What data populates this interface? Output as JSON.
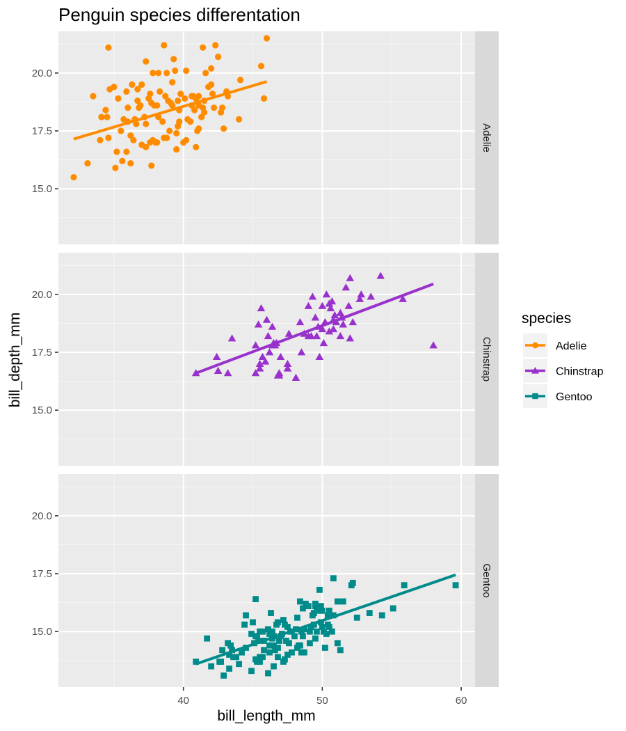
{
  "chart_data": {
    "type": "scatter",
    "title": "Penguin species differentation",
    "xlabel": "bill_length_mm",
    "ylabel": "bill_depth_mm",
    "xlim": [
      31.0,
      61.0
    ],
    "ylim": [
      12.6,
      21.8
    ],
    "x_ticks": [
      40,
      50,
      60
    ],
    "y_ticks": [
      15.0,
      17.5,
      20.0
    ],
    "y_tick_labels": [
      "15.0",
      "17.5",
      "20.0"
    ],
    "grid": true,
    "facet_by": "species",
    "legend_title": "species",
    "legend_position": "right",
    "series": [
      {
        "name": "Adelie",
        "color": "#FF8C00",
        "shape": "circle",
        "trend": {
          "x": [
            32.1,
            46.0
          ],
          "y": [
            17.15,
            19.63
          ]
        },
        "points": [
          [
            32.1,
            15.5
          ],
          [
            33.1,
            16.1
          ],
          [
            33.5,
            19.0
          ],
          [
            34.0,
            17.1
          ],
          [
            34.1,
            18.1
          ],
          [
            34.4,
            18.4
          ],
          [
            34.5,
            18.1
          ],
          [
            34.6,
            21.1
          ],
          [
            34.6,
            17.2
          ],
          [
            35.0,
            19.4
          ],
          [
            35.1,
            15.9
          ],
          [
            35.3,
            18.9
          ],
          [
            35.5,
            17.5
          ],
          [
            35.6,
            16.2
          ],
          [
            35.7,
            18.0
          ],
          [
            35.9,
            19.2
          ],
          [
            36.0,
            18.5
          ],
          [
            36.0,
            17.9
          ],
          [
            36.2,
            17.3
          ],
          [
            36.2,
            16.1
          ],
          [
            36.4,
            17.1
          ],
          [
            36.5,
            18.0
          ],
          [
            36.6,
            17.8
          ],
          [
            36.7,
            19.3
          ],
          [
            36.8,
            18.5
          ],
          [
            36.9,
            18.6
          ],
          [
            37.0,
            16.9
          ],
          [
            37.2,
            18.1
          ],
          [
            37.3,
            16.8
          ],
          [
            37.3,
            20.5
          ],
          [
            37.5,
            18.9
          ],
          [
            37.6,
            19.1
          ],
          [
            37.7,
            18.7
          ],
          [
            37.8,
            17.1
          ],
          [
            37.8,
            20.0
          ],
          [
            37.9,
            18.6
          ],
          [
            38.0,
            17.0
          ],
          [
            38.1,
            18.6
          ],
          [
            38.2,
            18.1
          ],
          [
            38.3,
            19.2
          ],
          [
            38.5,
            17.9
          ],
          [
            38.6,
            21.2
          ],
          [
            38.7,
            19.0
          ],
          [
            38.8,
            17.2
          ],
          [
            38.9,
            18.8
          ],
          [
            39.0,
            17.5
          ],
          [
            39.1,
            18.7
          ],
          [
            39.2,
            19.6
          ],
          [
            39.3,
            20.6
          ],
          [
            39.5,
            17.4
          ],
          [
            39.6,
            17.7
          ],
          [
            39.6,
            18.8
          ],
          [
            39.7,
            18.4
          ],
          [
            39.8,
            19.1
          ],
          [
            40.0,
            17.0
          ],
          [
            40.1,
            18.9
          ],
          [
            40.2,
            17.1
          ],
          [
            40.3,
            18.0
          ],
          [
            40.5,
            17.9
          ],
          [
            40.6,
            18.6
          ],
          [
            40.7,
            19.0
          ],
          [
            40.8,
            18.4
          ],
          [
            40.9,
            16.8
          ],
          [
            41.0,
            17.5
          ],
          [
            41.1,
            19.0
          ],
          [
            41.3,
            18.1
          ],
          [
            41.4,
            18.5
          ],
          [
            41.5,
            18.3
          ],
          [
            41.6,
            20.0
          ],
          [
            41.8,
            19.4
          ],
          [
            42.0,
            20.2
          ],
          [
            42.2,
            18.5
          ],
          [
            42.3,
            21.2
          ],
          [
            42.5,
            20.7
          ],
          [
            42.7,
            18.3
          ],
          [
            42.8,
            18.5
          ],
          [
            42.9,
            17.6
          ],
          [
            43.1,
            19.2
          ],
          [
            43.2,
            19.0
          ],
          [
            44.1,
            19.7
          ],
          [
            45.6,
            20.3
          ],
          [
            45.8,
            18.9
          ],
          [
            46.0,
            21.5
          ],
          [
            36.3,
            19.5
          ],
          [
            37.7,
            16.0
          ],
          [
            38.2,
            20.0
          ],
          [
            39.2,
            18.6
          ],
          [
            39.7,
            17.9
          ],
          [
            40.6,
            19.0
          ],
          [
            41.1,
            17.6
          ],
          [
            41.5,
            18.8
          ],
          [
            42.0,
            19.5
          ],
          [
            44.0,
            18.0
          ],
          [
            41.4,
            21.1
          ],
          [
            39.4,
            20.1
          ],
          [
            35.9,
            16.6
          ],
          [
            37.3,
            17.8
          ],
          [
            38.6,
            17.2
          ],
          [
            40.2,
            20.1
          ],
          [
            36.7,
            18.8
          ],
          [
            34.7,
            19.3
          ],
          [
            40.9,
            18.9
          ],
          [
            38.8,
            20.0
          ],
          [
            37.0,
            19.5
          ],
          [
            35.2,
            16.6
          ],
          [
            41.1,
            18.6
          ],
          [
            38.1,
            17.0
          ],
          [
            39.5,
            16.7
          ],
          [
            42.1,
            19.1
          ],
          [
            37.6,
            17.0
          ]
        ]
      },
      {
        "name": "Chinstrap",
        "color": "#9932CC",
        "shape": "triangle",
        "trend": {
          "x": [
            40.9,
            58.0
          ],
          "y": [
            16.6,
            20.45
          ]
        },
        "points": [
          [
            40.9,
            16.6
          ],
          [
            42.4,
            17.3
          ],
          [
            42.5,
            16.7
          ],
          [
            43.2,
            16.6
          ],
          [
            43.5,
            18.1
          ],
          [
            45.2,
            16.6
          ],
          [
            45.2,
            17.8
          ],
          [
            45.4,
            18.7
          ],
          [
            45.5,
            17.0
          ],
          [
            45.6,
            19.4
          ],
          [
            45.7,
            17.3
          ],
          [
            45.9,
            17.1
          ],
          [
            46.0,
            18.9
          ],
          [
            46.1,
            18.2
          ],
          [
            46.2,
            17.5
          ],
          [
            46.4,
            18.6
          ],
          [
            46.5,
            17.9
          ],
          [
            46.6,
            17.8
          ],
          [
            46.7,
            17.9
          ],
          [
            46.8,
            16.5
          ],
          [
            46.9,
            16.6
          ],
          [
            47.0,
            17.3
          ],
          [
            47.5,
            16.8
          ],
          [
            47.6,
            18.3
          ],
          [
            48.1,
            16.4
          ],
          [
            48.5,
            17.5
          ],
          [
            49.0,
            19.5
          ],
          [
            49.2,
            18.2
          ],
          [
            49.5,
            19.0
          ],
          [
            49.6,
            18.2
          ],
          [
            49.7,
            18.6
          ],
          [
            49.8,
            17.3
          ],
          [
            50.0,
            19.5
          ],
          [
            50.1,
            17.9
          ],
          [
            50.2,
            18.8
          ],
          [
            50.3,
            20.0
          ],
          [
            50.5,
            18.4
          ],
          [
            50.6,
            19.4
          ],
          [
            50.7,
            19.7
          ],
          [
            50.8,
            18.5
          ],
          [
            50.9,
            19.1
          ],
          [
            51.0,
            18.8
          ],
          [
            51.3,
            19.2
          ],
          [
            51.4,
            19.0
          ],
          [
            51.5,
            18.7
          ],
          [
            51.7,
            20.3
          ],
          [
            52.0,
            18.1
          ],
          [
            52.0,
            20.7
          ],
          [
            52.2,
            18.8
          ],
          [
            52.7,
            19.8
          ],
          [
            52.8,
            20.0
          ],
          [
            53.5,
            19.9
          ],
          [
            54.2,
            20.8
          ],
          [
            55.8,
            19.8
          ],
          [
            58.0,
            17.8
          ],
          [
            50.5,
            19.6
          ],
          [
            49.3,
            19.9
          ],
          [
            51.9,
            19.5
          ],
          [
            48.7,
            18.3
          ],
          [
            47.5,
            17.0
          ],
          [
            46.4,
            17.8
          ],
          [
            50.8,
            18.9
          ],
          [
            49.0,
            18.2
          ],
          [
            46.9,
            16.5
          ],
          [
            45.5,
            16.8
          ],
          [
            48.4,
            18.8
          ],
          [
            50.0,
            18.5
          ],
          [
            51.3,
            18.2
          ]
        ]
      },
      {
        "name": "Gentoo",
        "color": "#008B8B",
        "shape": "square",
        "trend": {
          "x": [
            40.9,
            59.6
          ],
          "y": [
            13.6,
            17.45
          ]
        },
        "points": [
          [
            40.9,
            13.7
          ],
          [
            41.7,
            14.7
          ],
          [
            42.0,
            13.5
          ],
          [
            42.6,
            13.7
          ],
          [
            42.7,
            13.7
          ],
          [
            42.8,
            14.2
          ],
          [
            42.9,
            13.1
          ],
          [
            43.2,
            14.5
          ],
          [
            43.3,
            13.4
          ],
          [
            43.3,
            14.0
          ],
          [
            43.5,
            14.2
          ],
          [
            43.6,
            13.9
          ],
          [
            43.8,
            13.9
          ],
          [
            44.0,
            13.6
          ],
          [
            44.4,
            15.3
          ],
          [
            44.5,
            14.3
          ],
          [
            44.5,
            15.7
          ],
          [
            44.9,
            13.3
          ],
          [
            45.0,
            15.4
          ],
          [
            45.1,
            14.5
          ],
          [
            45.2,
            13.8
          ],
          [
            45.2,
            14.8
          ],
          [
            45.2,
            16.4
          ],
          [
            45.3,
            13.7
          ],
          [
            45.4,
            14.6
          ],
          [
            45.5,
            13.7
          ],
          [
            45.5,
            13.9
          ],
          [
            45.5,
            15.0
          ],
          [
            45.7,
            13.9
          ],
          [
            45.8,
            14.2
          ],
          [
            46.1,
            13.2
          ],
          [
            46.1,
            15.1
          ],
          [
            46.2,
            14.1
          ],
          [
            46.2,
            14.9
          ],
          [
            46.3,
            15.8
          ],
          [
            46.4,
            15.0
          ],
          [
            46.5,
            13.5
          ],
          [
            46.5,
            14.4
          ],
          [
            46.5,
            14.8
          ],
          [
            46.6,
            14.2
          ],
          [
            46.7,
            15.3
          ],
          [
            46.8,
            14.3
          ],
          [
            46.8,
            15.4
          ],
          [
            46.9,
            14.6
          ],
          [
            47.0,
            14.8
          ],
          [
            47.2,
            13.7
          ],
          [
            47.2,
            15.5
          ],
          [
            47.3,
            13.8
          ],
          [
            47.4,
            14.6
          ],
          [
            47.5,
            14.0
          ],
          [
            47.6,
            14.5
          ],
          [
            47.7,
            15.0
          ],
          [
            47.8,
            15.0
          ],
          [
            48.1,
            15.1
          ],
          [
            48.2,
            14.3
          ],
          [
            48.2,
            15.6
          ],
          [
            48.4,
            14.4
          ],
          [
            48.4,
            16.3
          ],
          [
            48.5,
            14.1
          ],
          [
            48.5,
            15.0
          ],
          [
            48.6,
            16.0
          ],
          [
            48.7,
            14.1
          ],
          [
            48.7,
            15.1
          ],
          [
            48.8,
            16.2
          ],
          [
            49.0,
            16.1
          ],
          [
            49.1,
            14.5
          ],
          [
            49.1,
            15.0
          ],
          [
            49.2,
            15.2
          ],
          [
            49.3,
            15.7
          ],
          [
            49.4,
            15.8
          ],
          [
            49.5,
            16.1
          ],
          [
            49.5,
            16.2
          ],
          [
            49.6,
            15.0
          ],
          [
            49.6,
            16.0
          ],
          [
            49.8,
            15.9
          ],
          [
            49.8,
            16.8
          ],
          [
            49.9,
            16.1
          ],
          [
            50.0,
            15.2
          ],
          [
            50.0,
            15.9
          ],
          [
            50.1,
            15.0
          ],
          [
            50.2,
            14.3
          ],
          [
            50.4,
            15.3
          ],
          [
            50.4,
            15.7
          ],
          [
            50.5,
            15.2
          ],
          [
            50.5,
            15.9
          ],
          [
            50.7,
            15.0
          ],
          [
            50.8,
            15.7
          ],
          [
            50.8,
            17.3
          ],
          [
            51.1,
            14.5
          ],
          [
            51.1,
            16.3
          ],
          [
            51.3,
            14.2
          ],
          [
            51.5,
            16.3
          ],
          [
            52.1,
            17.0
          ],
          [
            52.2,
            17.1
          ],
          [
            52.5,
            15.6
          ],
          [
            53.4,
            15.8
          ],
          [
            54.3,
            15.7
          ],
          [
            55.1,
            16.0
          ],
          [
            55.9,
            17.0
          ],
          [
            59.6,
            17.0
          ],
          [
            47.3,
            15.3
          ],
          [
            48.0,
            14.8
          ],
          [
            45.8,
            14.6
          ],
          [
            44.9,
            14.9
          ],
          [
            47.5,
            15.2
          ],
          [
            49.9,
            15.4
          ],
          [
            46.2,
            14.4
          ],
          [
            43.4,
            14.4
          ],
          [
            45.3,
            14.8
          ],
          [
            46.4,
            14.7
          ],
          [
            47.8,
            14.1
          ],
          [
            48.6,
            14.8
          ],
          [
            49.4,
            15.3
          ],
          [
            50.3,
            14.9
          ],
          [
            46.8,
            13.9
          ],
          [
            45.7,
            15.0
          ],
          [
            44.2,
            14.1
          ],
          [
            48.3,
            14.4
          ],
          [
            47.1,
            14.9
          ],
          [
            49.5,
            14.7
          ]
        ]
      }
    ]
  }
}
